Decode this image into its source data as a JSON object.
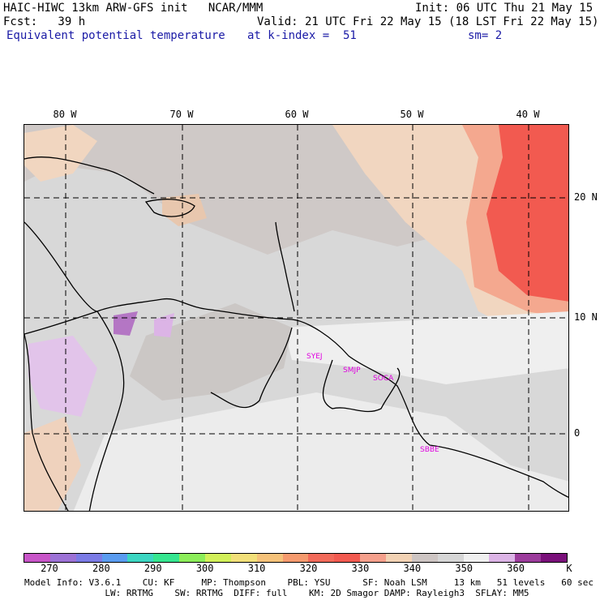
{
  "header": {
    "left_line1": "HAIC-HIWC 13km ARW-GFS init   NCAR/MMM",
    "left_line2": "Fcst:   39 h",
    "left_line3": "Equivalent potential temperature",
    "right_line1": "Init: 06 UTC Thu 21 May 15",
    "right_line2": "Valid: 21 UTC Fri 22 May 15 (18 LST Fri 22 May 15)",
    "mid_line3": "at k-index =  51",
    "right_line3": "sm= 2"
  },
  "map": {
    "lon_labels": [
      "80 W",
      "70 W",
      "60 W",
      "50 W",
      "40 W"
    ],
    "lat_labels": [
      "20 N",
      "10 N",
      "0"
    ],
    "stations": [
      "SYEJ",
      "SMJP",
      "SOCA",
      "SBBE"
    ]
  },
  "colorbar": {
    "unit": "K",
    "ticks": [
      "270",
      "280",
      "290",
      "300",
      "310",
      "320",
      "330",
      "340",
      "350",
      "360"
    ],
    "colors": [
      "#c855c8",
      "#9d72d6",
      "#7b7be6",
      "#5a9cf0",
      "#3cd6c2",
      "#36e690",
      "#8ced5a",
      "#d2f05a",
      "#f2e07a",
      "#f5c27a",
      "#f59a6e",
      "#f26a5a",
      "#f25a50",
      "#f5a08c",
      "#f2d2b4",
      "#cdc5c3",
      "#d6d6d6",
      "#f0f0f0",
      "#dcb4e6",
      "#9c3c9c",
      "#7a107a"
    ]
  },
  "footer": {
    "line1": "Model Info: V3.6.1    CU: KF     MP: Thompson    PBL: YSU      SF: Noah LSM     13 km   51 levels   60 sec",
    "line2": "               LW: RRTMG    SW: RRTMG  DIFF: full    KM: 2D Smagor DAMP: Rayleigh3  SFLAY: MM5"
  }
}
